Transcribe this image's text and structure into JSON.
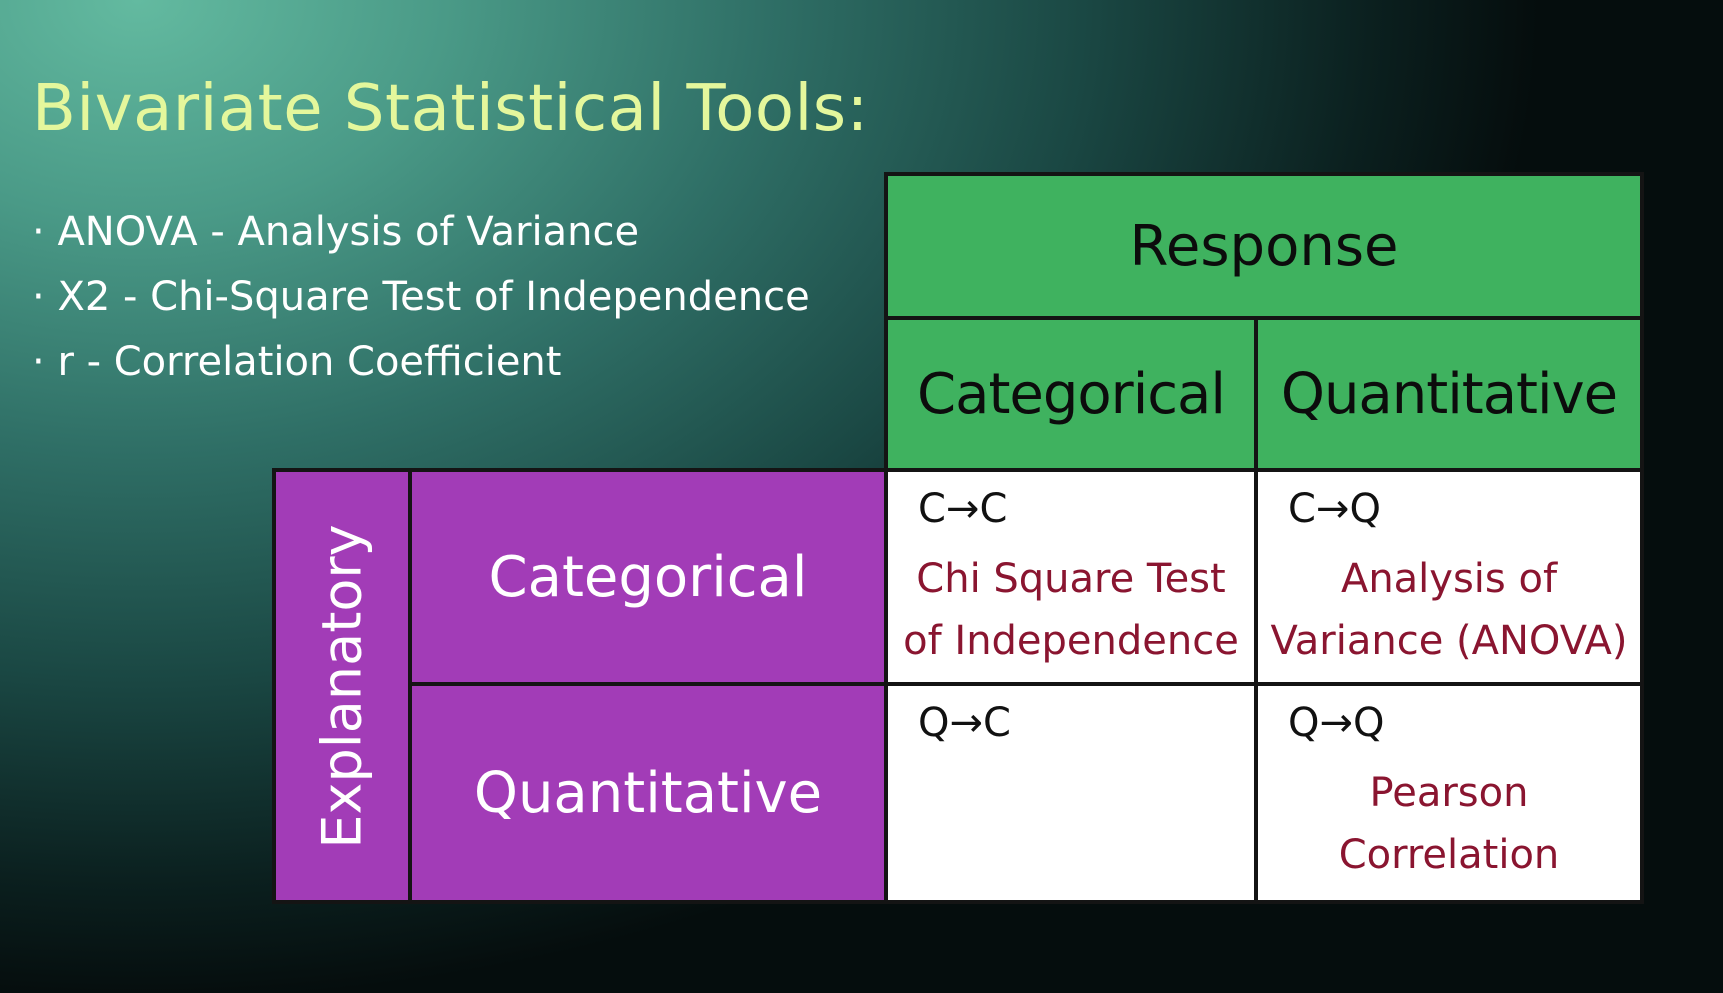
{
  "title": "Bivariate Statistical Tools:",
  "bullets": [
    "ANOVA - Analysis of Variance",
    "X2 - Chi-Square Test of Independence",
    "r - Correlation Coefficient"
  ],
  "table": {
    "response_header": "Response",
    "response_columns": [
      "Categorical",
      "Quantitative"
    ],
    "explanatory_header": "Explanatory",
    "explanatory_rows": [
      "Categorical",
      "Quantitative"
    ],
    "cells": {
      "cc": {
        "label": "C→C",
        "test_line1": "Chi Square Test",
        "test_line2": "of Independence"
      },
      "cq": {
        "label": "C→Q",
        "test_line1": "Analysis of",
        "test_line2": "Variance (ANOVA)"
      },
      "qc": {
        "label": "Q→C",
        "test_line1": "",
        "test_line2": ""
      },
      "qq": {
        "label": "Q→Q",
        "test_line1": "Pearson",
        "test_line2": "Correlation"
      }
    }
  },
  "colors": {
    "title": "#e4f79c",
    "response_fill": "#3fb25f",
    "explanatory_fill": "#a23cb7",
    "test_text": "#8a1530"
  }
}
